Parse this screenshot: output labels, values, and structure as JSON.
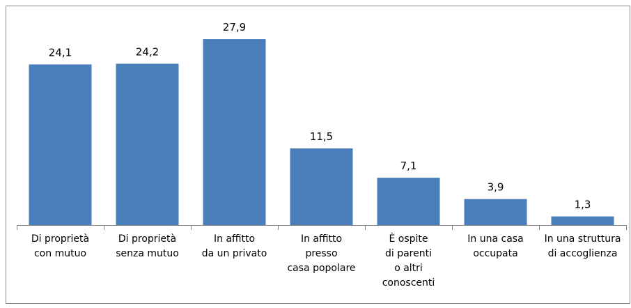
{
  "chart_data": {
    "type": "bar",
    "categories": [
      "Di proprietà\ncon mutuo",
      "Di proprietà\nsenza mutuo",
      "In affitto\nda un privato",
      "In affitto\npresso\ncasa popolare",
      "È ospite\ndi parenti\no altri\nconoscenti",
      "In una casa\noccupata",
      "In una struttura\ndi accoglienza"
    ],
    "values": [
      24.1,
      24.2,
      27.9,
      11.5,
      7.1,
      3.9,
      1.3
    ],
    "value_labels": [
      "24,1",
      "24,2",
      "27,9",
      "11,5",
      "7,1",
      "3,9",
      "1,3"
    ],
    "color": "#4a7ebb",
    "ylim": [
      0,
      30
    ]
  }
}
